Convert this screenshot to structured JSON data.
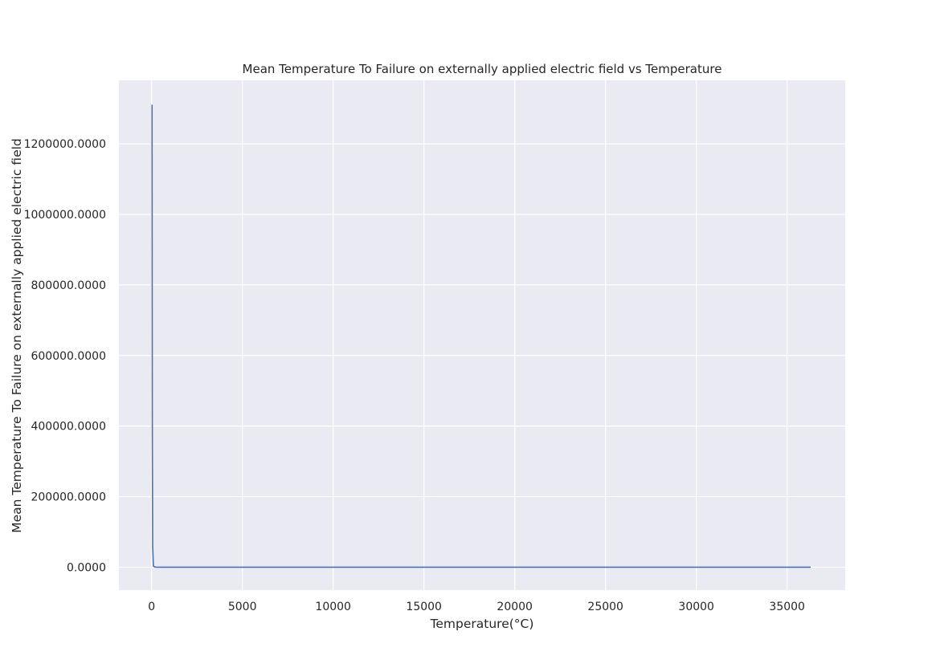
{
  "chart_data": {
    "type": "line",
    "title": "Mean Temperature To Failure on externally applied electric field vs Temperature",
    "xlabel": "Temperature(°C)",
    "ylabel": "Mean Temperature To Failure on externally applied electric field",
    "xlim": [
      -1800,
      38200
    ],
    "ylim": [
      -65000,
      1380000
    ],
    "xticks": [
      0,
      5000,
      10000,
      15000,
      20000,
      25000,
      30000,
      35000
    ],
    "xtick_labels": [
      "0",
      "5000",
      "10000",
      "15000",
      "20000",
      "25000",
      "30000",
      "35000"
    ],
    "yticks": [
      0,
      200000,
      400000,
      600000,
      800000,
      1000000,
      1200000
    ],
    "ytick_labels": [
      "0.0000",
      "200000.0000",
      "400000.0000",
      "600000.0000",
      "800000.0000",
      "1000000.0000",
      "1200000.0000"
    ],
    "grid": true,
    "series": [
      {
        "color": "#4c72b0",
        "x": [
          25,
          40,
          60,
          100,
          200,
          500,
          1000,
          5000,
          10000,
          15000,
          20000,
          25000,
          30000,
          36300
        ],
        "y": [
          1311000,
          400000,
          60000,
          3000,
          200,
          10,
          1,
          0,
          0,
          0,
          0,
          0,
          0,
          0
        ]
      }
    ],
    "colors": {
      "plot_background": "#eaeaf2",
      "grid": "#ffffff",
      "text": "#262626"
    }
  }
}
